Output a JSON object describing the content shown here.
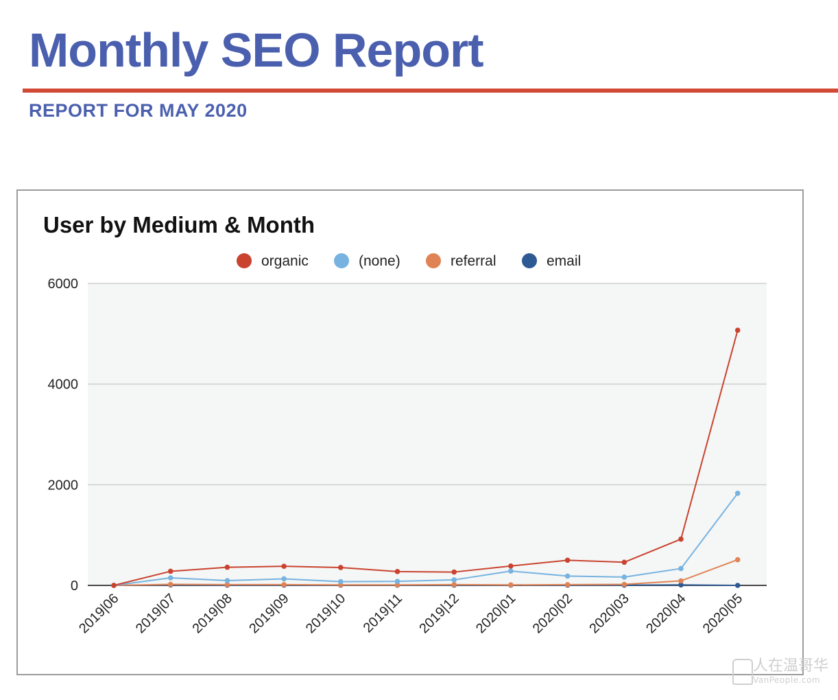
{
  "report": {
    "title": "Monthly SEO Report",
    "subtitle": "REPORT FOR MAY 2020",
    "title_color": "#4a5fae",
    "rule_color": "#d24a35"
  },
  "watermark": {
    "text": "人在温哥华",
    "subtext": "VanPeople.com"
  },
  "chart_data": {
    "type": "line",
    "title": "User by Medium & Month",
    "xlabel": "",
    "ylabel": "",
    "categories": [
      "2019|06",
      "2019|07",
      "2019|08",
      "2019|09",
      "2019|10",
      "2019|11",
      "2019|12",
      "2020|01",
      "2020|02",
      "2020|03",
      "2020|04",
      "2020|05"
    ],
    "y_ticks": [
      0,
      2000,
      4000,
      6000
    ],
    "ylim": [
      0,
      6000
    ],
    "grid": true,
    "legend_position": "top",
    "series": [
      {
        "name": "organic",
        "color": "#c9432f",
        "values": [
          0,
          280,
          360,
          380,
          355,
          275,
          265,
          385,
          500,
          460,
          920,
          5070
        ]
      },
      {
        "name": "(none)",
        "color": "#76b3e0",
        "values": [
          0,
          150,
          95,
          130,
          75,
          80,
          110,
          285,
          185,
          165,
          335,
          1830
        ]
      },
      {
        "name": "referral",
        "color": "#e08354",
        "values": [
          0,
          20,
          15,
          15,
          10,
          10,
          15,
          10,
          15,
          20,
          90,
          510
        ]
      },
      {
        "name": "email",
        "color": "#2e5a93",
        "values": [
          0,
          10,
          5,
          5,
          5,
          5,
          5,
          5,
          5,
          5,
          10,
          0
        ]
      }
    ]
  }
}
